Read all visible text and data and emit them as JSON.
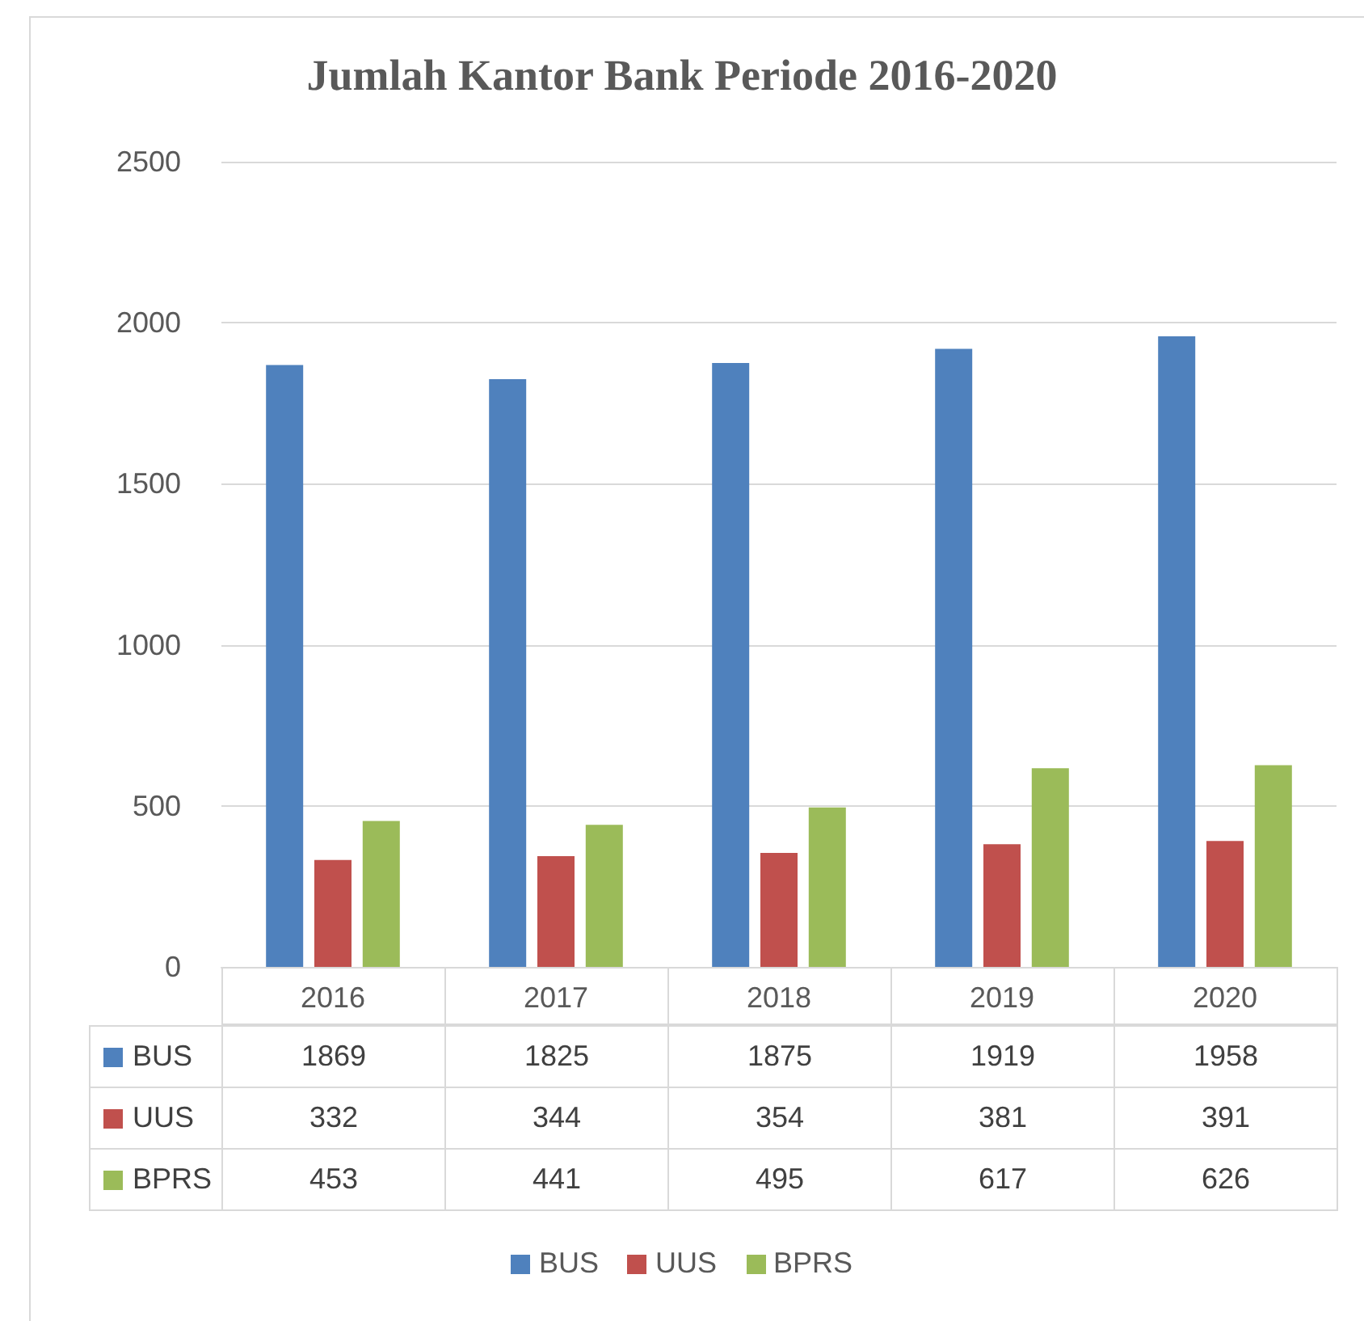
{
  "chart_data": {
    "type": "bar",
    "title": "Jumlah Kantor Bank Periode 2016-2020",
    "categories": [
      "2016",
      "2017",
      "2018",
      "2019",
      "2020"
    ],
    "series": [
      {
        "name": "BUS",
        "color": "#4f81bd",
        "values": [
          1869,
          1825,
          1875,
          1919,
          1958
        ]
      },
      {
        "name": "UUS",
        "color": "#c0504d",
        "values": [
          332,
          344,
          354,
          381,
          391
        ]
      },
      {
        "name": "BPRS",
        "color": "#9bbb59",
        "values": [
          453,
          441,
          495,
          617,
          626
        ]
      }
    ],
    "ylim": [
      0,
      2500
    ],
    "yticks": [
      0,
      500,
      1000,
      1500,
      2000,
      2500
    ],
    "grid": "y",
    "legend": "bottom",
    "data_labels": true
  }
}
